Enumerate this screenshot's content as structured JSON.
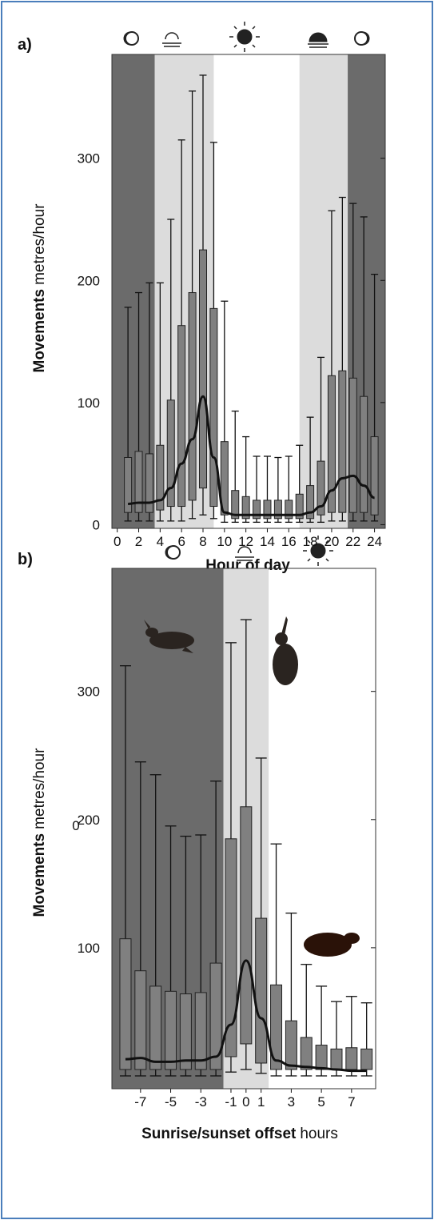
{
  "chart_data": [
    {
      "type": "box",
      "label": "a)",
      "y_label_bold": "Movements",
      "y_label": "metres/hour",
      "x_label": "Hour of day",
      "x": [
        1,
        2,
        3,
        4,
        5,
        6,
        7,
        8,
        9,
        10,
        11,
        12,
        13,
        14,
        15,
        16,
        17,
        18,
        19,
        20,
        21,
        22,
        23,
        24
      ],
      "q3": [
        55,
        60,
        58,
        65,
        102,
        163,
        190,
        225,
        177,
        68,
        28,
        23,
        20,
        20,
        20,
        20,
        25,
        32,
        52,
        122,
        126,
        120,
        105,
        72
      ],
      "q1": [
        10,
        10,
        10,
        12,
        15,
        15,
        20,
        30,
        15,
        8,
        5,
        5,
        5,
        5,
        5,
        5,
        5,
        5,
        8,
        10,
        10,
        10,
        10,
        8
      ],
      "whisker_high": [
        178,
        190,
        198,
        198,
        250,
        315,
        355,
        368,
        313,
        183,
        93,
        72,
        56,
        56,
        55,
        56,
        65,
        88,
        137,
        257,
        268,
        263,
        252,
        205
      ],
      "whisker_low": [
        3,
        3,
        3,
        3,
        3,
        3,
        5,
        8,
        5,
        2,
        2,
        2,
        2,
        2,
        2,
        2,
        2,
        2,
        2,
        3,
        3,
        3,
        3,
        3
      ],
      "mean": [
        17,
        18,
        18,
        20,
        30,
        50,
        70,
        105,
        55,
        10,
        8,
        8,
        8,
        8,
        8,
        8,
        8,
        10,
        15,
        28,
        38,
        40,
        32,
        22
      ],
      "xlim": [
        -0.5,
        25
      ],
      "ylim": [
        -3,
        385
      ],
      "xticks": [
        0,
        2,
        4,
        6,
        8,
        10,
        12,
        14,
        16,
        18,
        20,
        22,
        24
      ],
      "yticks": [
        0,
        100,
        200,
        300
      ],
      "bands": [
        {
          "x0": -0.5,
          "x1": 3.5,
          "color": "#6b6b6b"
        },
        {
          "x0": 3.5,
          "x1": 9,
          "color": "#dcdcdc"
        },
        {
          "x0": 17,
          "x1": 21.5,
          "color": "#dcdcdc"
        },
        {
          "x0": 21.5,
          "x1": 25,
          "color": "#6b6b6b"
        }
      ],
      "box_color": "#808080",
      "line_color": "#111111"
    },
    {
      "type": "box",
      "label": "b)",
      "y_label_bold": "Movements",
      "y_label": "metres/hour",
      "x_label_bold": "Sunrise/sunset offset",
      "x_label": "hours",
      "annotation": "0",
      "x": [
        -8,
        -7,
        -6,
        -5,
        -4,
        -3,
        -2,
        -1,
        0,
        1,
        2,
        3,
        4,
        5,
        6,
        7,
        8
      ],
      "q3": [
        107,
        82,
        70,
        66,
        64,
        65,
        88,
        185,
        210,
        123,
        71,
        43,
        30,
        24,
        21,
        22,
        21
      ],
      "q1": [
        5,
        5,
        5,
        5,
        5,
        5,
        5,
        15,
        25,
        10,
        5,
        5,
        5,
        5,
        5,
        5,
        5
      ],
      "whisker_high": [
        320,
        245,
        235,
        195,
        187,
        188,
        230,
        338,
        356,
        248,
        181,
        127,
        87,
        70,
        58,
        62,
        57
      ],
      "whisker_low": [
        0,
        0,
        0,
        0,
        0,
        0,
        0,
        3,
        5,
        2,
        0,
        0,
        0,
        0,
        0,
        0,
        0
      ],
      "mean": [
        13,
        14,
        11,
        11,
        12,
        12,
        15,
        40,
        90,
        45,
        12,
        8,
        7,
        6,
        5,
        4,
        4
      ],
      "xlim": [
        -8.9,
        8.6
      ],
      "ylim": [
        -10,
        396
      ],
      "xticks": [
        -7,
        -5,
        -3,
        -1,
        0,
        1,
        3,
        5,
        7
      ],
      "yticks": [
        100,
        200,
        300
      ],
      "bands": [
        {
          "x0": -8.9,
          "x1": -1.5,
          "color": "#6b6b6b"
        },
        {
          "x0": -1.5,
          "x1": 1.5,
          "color": "#dcdcdc"
        }
      ],
      "box_color": "#808080",
      "line_color": "#111111"
    }
  ]
}
